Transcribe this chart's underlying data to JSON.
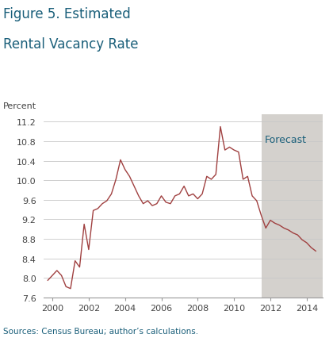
{
  "title_line1": "Figure 5. Estimated",
  "title_line2": "Rental Vacancy Rate",
  "ylabel": "Percent",
  "source": "Sources: Census Bureau; author’s calculations.",
  "forecast_label": "Forecast",
  "forecast_start": 2011.5,
  "xlim": [
    1999.5,
    2014.9
  ],
  "ylim": [
    7.6,
    11.35
  ],
  "yticks": [
    7.6,
    8.0,
    8.4,
    8.8,
    9.2,
    9.6,
    10.0,
    10.4,
    10.8,
    11.2
  ],
  "xticks": [
    2000,
    2002,
    2004,
    2006,
    2008,
    2010,
    2012,
    2014
  ],
  "line_color": "#a04040",
  "background_color": "#ffffff",
  "forecast_bg_color": "#d4d1cd",
  "grid_color": "#c8c8c8",
  "title_color": "#1a5f7a",
  "label_color": "#1a5f7a",
  "source_color": "#1a5f7a",
  "data": [
    [
      1999.75,
      7.95
    ],
    [
      2000.0,
      8.05
    ],
    [
      2000.25,
      8.15
    ],
    [
      2000.5,
      8.05
    ],
    [
      2000.75,
      7.82
    ],
    [
      2001.0,
      7.78
    ],
    [
      2001.25,
      8.35
    ],
    [
      2001.5,
      8.22
    ],
    [
      2001.75,
      9.1
    ],
    [
      2002.0,
      8.58
    ],
    [
      2002.25,
      9.38
    ],
    [
      2002.5,
      9.42
    ],
    [
      2002.75,
      9.52
    ],
    [
      2003.0,
      9.58
    ],
    [
      2003.25,
      9.72
    ],
    [
      2003.5,
      10.02
    ],
    [
      2003.75,
      10.42
    ],
    [
      2004.0,
      10.22
    ],
    [
      2004.25,
      10.08
    ],
    [
      2004.5,
      9.88
    ],
    [
      2004.75,
      9.68
    ],
    [
      2005.0,
      9.52
    ],
    [
      2005.25,
      9.58
    ],
    [
      2005.5,
      9.48
    ],
    [
      2005.75,
      9.52
    ],
    [
      2006.0,
      9.68
    ],
    [
      2006.25,
      9.55
    ],
    [
      2006.5,
      9.52
    ],
    [
      2006.75,
      9.68
    ],
    [
      2007.0,
      9.72
    ],
    [
      2007.25,
      9.88
    ],
    [
      2007.5,
      9.68
    ],
    [
      2007.75,
      9.72
    ],
    [
      2008.0,
      9.62
    ],
    [
      2008.25,
      9.72
    ],
    [
      2008.5,
      10.08
    ],
    [
      2008.75,
      10.02
    ],
    [
      2009.0,
      10.12
    ],
    [
      2009.25,
      11.1
    ],
    [
      2009.5,
      10.62
    ],
    [
      2009.75,
      10.68
    ],
    [
      2010.0,
      10.62
    ],
    [
      2010.25,
      10.58
    ],
    [
      2010.5,
      10.02
    ],
    [
      2010.75,
      10.08
    ],
    [
      2011.0,
      9.68
    ],
    [
      2011.25,
      9.58
    ],
    [
      2011.5,
      9.28
    ],
    [
      2011.75,
      9.02
    ],
    [
      2012.0,
      9.18
    ],
    [
      2012.25,
      9.12
    ],
    [
      2012.5,
      9.08
    ],
    [
      2012.75,
      9.02
    ],
    [
      2013.0,
      8.98
    ],
    [
      2013.25,
      8.92
    ],
    [
      2013.5,
      8.88
    ],
    [
      2013.75,
      8.78
    ],
    [
      2014.0,
      8.72
    ],
    [
      2014.25,
      8.62
    ],
    [
      2014.5,
      8.55
    ]
  ]
}
